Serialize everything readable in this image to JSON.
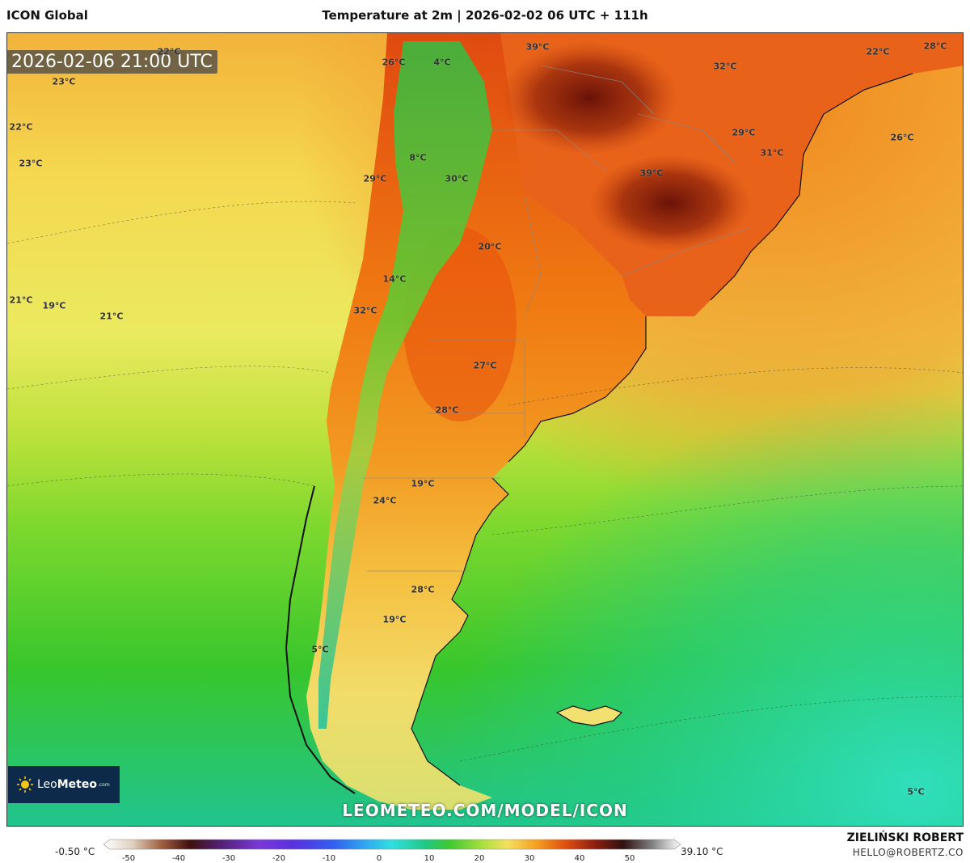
{
  "header": {
    "model": "ICON Global",
    "title": "Temperature at 2m | 2026-02-02 06 UTC + 111h"
  },
  "map": {
    "valid_time": "2026-02-06 21:00 UTC",
    "watermark": "LEOMETEO.COM/MODEL/ICON",
    "temperature_labels": [
      "22°C",
      "26°C",
      "4°C",
      "39°C",
      "32°C",
      "22°C",
      "28°C",
      "23°C",
      "22°C",
      "23°C",
      "29°C",
      "26°C",
      "31°C",
      "39°C",
      "8°C",
      "29°C",
      "30°C",
      "20°C",
      "21°C",
      "19°C",
      "21°C",
      "14°C",
      "32°C",
      "27°C",
      "28°C",
      "19°C",
      "24°C",
      "28°C",
      "19°C",
      "5°C",
      "5°C"
    ]
  },
  "logo": {
    "brand_leo": "Leo",
    "brand_meteo": "Meteo",
    "brand_suffix": ".com",
    "icon": "sun-icon"
  },
  "legend": {
    "min_label": "-0.50 °C",
    "max_label": "39.10 °C",
    "ticks": [
      "-50",
      "-40",
      "-30",
      "-20",
      "-10",
      "0",
      "10",
      "20",
      "30",
      "40",
      "50"
    ]
  },
  "author": {
    "name": "ZIELIŃSKI ROBERT",
    "email": "HELLO@ROBERTZ.CO"
  },
  "colors": {
    "hot": "#7a1a0a",
    "warm": "#f07a10",
    "mild": "#f5e060",
    "cool": "#3cc428",
    "cold": "#22d6b0",
    "logo_bg": "#0d2a4a"
  }
}
